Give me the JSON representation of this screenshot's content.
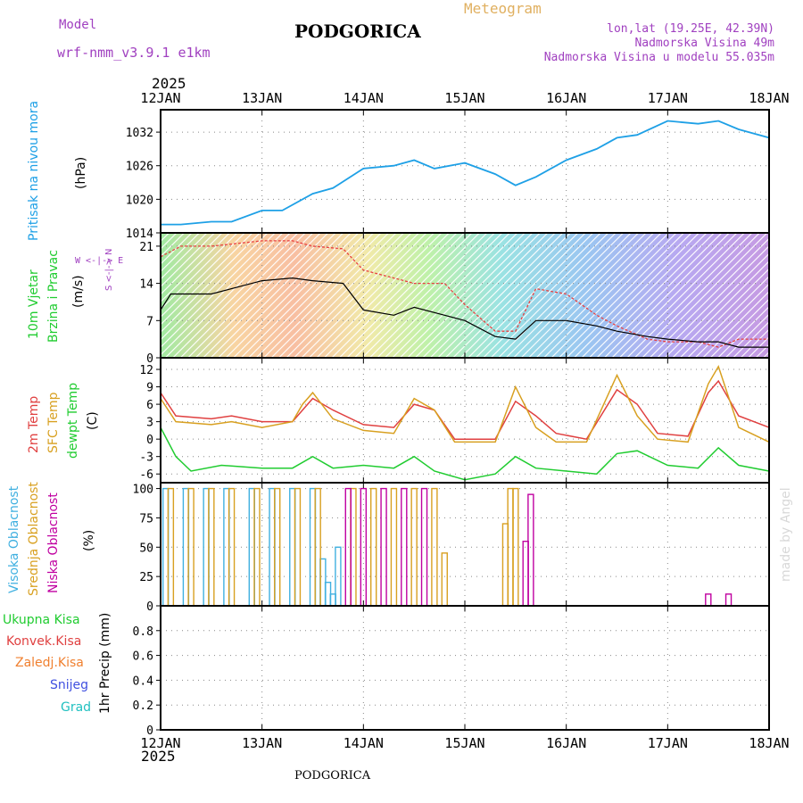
{
  "header": {
    "model_label": "Model",
    "model_name": "wrf-nmm_v3.9.1 e1km",
    "station": "PODGORICA",
    "product": "Meteogram",
    "coords": "lon,lat (19.25E, 42.39N)",
    "elevation": "Nadmorska Visina 49m",
    "model_elevation": "Nadmorska Visina u modelu 55.035m",
    "year_top": "2025",
    "year_bottom": "2025",
    "footer_station": "PODGORICA",
    "credit": "made by Angel"
  },
  "colors": {
    "pressure": "#1ea0e6",
    "wind_speed": "#000000",
    "wind_gust": "#e84040",
    "temp2m": "#e04040",
    "sfc_temp": "#d8a020",
    "dewpoint": "#20cc30",
    "cloud_high": "#40b0e0",
    "cloud_mid": "#d8a020",
    "cloud_low": "#c000a0",
    "grid": "#888888"
  },
  "labels": {
    "pressure": [
      "Pritisak na nivou mora",
      "(hPa)"
    ],
    "wind": [
      "10m Vjetar",
      "Brzina i Pravac",
      "(m/s)"
    ],
    "wind_rose": "W <-|-> E",
    "wind_rose_v": "S <-|-> N",
    "temp": [
      "2m Temp",
      "SFC Temp",
      "dewpt Temp",
      "(C)"
    ],
    "cloud": [
      "Visoka Oblacnost",
      "Srednja Oblacnost",
      "Niska Oblacnost",
      "(%)"
    ],
    "precip_legend": [
      "Ukupna Kisa",
      "Konvek.Kisa",
      "Zaledj.Kisa",
      "Snijeg",
      "Grad"
    ],
    "precip_axis": "1hr Precip (mm)"
  },
  "chart_data": [
    {
      "type": "line",
      "id": "pressure",
      "days": [
        "12JAN",
        "13JAN",
        "14JAN",
        "15JAN",
        "16JAN",
        "17JAN",
        "18JAN"
      ],
      "ylim": [
        1014,
        1036
      ],
      "yticks": [
        "1032",
        "1026",
        "1020",
        "1014"
      ],
      "ytick_values": [
        1032,
        1026,
        1020,
        1014
      ],
      "series": [
        {
          "x": [
            0,
            0.2,
            0.5,
            0.7,
            1.0,
            1.2,
            1.5,
            1.7,
            2.0,
            2.3,
            2.5,
            2.7,
            3.0,
            3.3,
            3.5,
            3.7,
            4.0,
            4.3,
            4.5,
            4.7,
            5.0,
            5.3,
            5.5,
            5.7,
            6.0
          ],
          "y": [
            1015.5,
            1015.5,
            1016,
            1016,
            1018,
            1018,
            1021,
            1022,
            1025.5,
            1026,
            1027,
            1025.5,
            1026.5,
            1024.5,
            1022.5,
            1024,
            1027,
            1029,
            1031,
            1031.5,
            1034,
            1033.5,
            1034,
            1032.5,
            1031
          ]
        }
      ]
    },
    {
      "type": "line",
      "id": "wind",
      "ylim": [
        0,
        23.5
      ],
      "yticks": [
        "21",
        "14",
        "7",
        "0"
      ],
      "ytick_values": [
        21,
        14,
        7,
        0
      ],
      "series": [
        {
          "name": "speed",
          "x": [
            0,
            0.1,
            0.5,
            1.0,
            1.3,
            1.5,
            1.8,
            2.0,
            2.3,
            2.5,
            2.8,
            3.0,
            3.3,
            3.5,
            3.7,
            4.0,
            4.3,
            4.5,
            4.8,
            5.0,
            5.3,
            5.5,
            5.7,
            6.0
          ],
          "y": [
            9,
            12,
            12,
            14.5,
            15,
            14.5,
            14,
            9,
            8,
            9.5,
            8,
            7,
            4,
            3.5,
            7,
            7,
            6,
            5,
            4,
            3.5,
            3,
            3,
            2,
            2
          ]
        },
        {
          "name": "gust",
          "x": [
            0,
            0.2,
            0.5,
            1.0,
            1.3,
            1.5,
            1.8,
            2.0,
            2.3,
            2.5,
            2.8,
            3.0,
            3.3,
            3.5,
            3.7,
            4.0,
            4.3,
            4.5,
            4.8,
            5.0,
            5.3,
            5.5,
            5.7,
            6.0
          ],
          "y": [
            19,
            21,
            21,
            22,
            22,
            21,
            20.5,
            16.5,
            15,
            14,
            14,
            10,
            5,
            5,
            13,
            12,
            8,
            6,
            3.5,
            3,
            3,
            2,
            3.5,
            3.5
          ]
        }
      ]
    },
    {
      "type": "line",
      "id": "temperature",
      "ylim": [
        -7.5,
        14
      ],
      "yticks": [
        "12",
        "9",
        "6",
        "3",
        "0",
        "-3",
        "-6"
      ],
      "ytick_values": [
        12,
        9,
        6,
        3,
        0,
        -3,
        -6
      ],
      "series": [
        {
          "name": "2m Temp",
          "x": [
            0,
            0.15,
            0.5,
            0.7,
            1.0,
            1.3,
            1.4,
            1.5,
            1.7,
            2.0,
            2.3,
            2.5,
            2.7,
            2.9,
            3.3,
            3.5,
            3.7,
            3.9,
            4.2,
            4.5,
            4.7,
            4.9,
            5.2,
            5.4,
            5.5,
            5.7,
            6.0
          ],
          "y": [
            8,
            4,
            3.5,
            4,
            3,
            3,
            5,
            7,
            5,
            2.5,
            2,
            6,
            5,
            0,
            0,
            6.5,
            4,
            1,
            0,
            8.5,
            6,
            1,
            0.5,
            8,
            10,
            4,
            2
          ]
        },
        {
          "name": "SFC Temp",
          "x": [
            0,
            0.15,
            0.5,
            0.7,
            1.0,
            1.3,
            1.4,
            1.5,
            1.7,
            2.0,
            2.3,
            2.5,
            2.7,
            2.9,
            3.3,
            3.5,
            3.7,
            3.9,
            4.2,
            4.5,
            4.7,
            4.9,
            5.2,
            5.4,
            5.5,
            5.7,
            6.0
          ],
          "y": [
            7,
            3,
            2.5,
            3,
            2,
            3,
            6,
            8,
            3.5,
            1.5,
            1,
            7,
            5,
            -0.5,
            -0.5,
            9,
            2,
            -0.5,
            -0.5,
            11,
            4,
            0,
            -0.5,
            9.5,
            12.5,
            2,
            -0.5
          ]
        },
        {
          "name": "dewpt Temp",
          "x": [
            0,
            0.15,
            0.3,
            0.6,
            1.0,
            1.3,
            1.5,
            1.7,
            2.0,
            2.3,
            2.5,
            2.7,
            3.0,
            3.3,
            3.5,
            3.7,
            4.0,
            4.3,
            4.5,
            4.7,
            5.0,
            5.3,
            5.5,
            5.7,
            6.0
          ],
          "y": [
            2,
            -3,
            -5.5,
            -4.5,
            -5,
            -5,
            -3,
            -5,
            -4.5,
            -5,
            -3,
            -5.5,
            -7,
            -6,
            -3,
            -5,
            -5.5,
            -6,
            -2.5,
            -2,
            -4.5,
            -5,
            -1.5,
            -4.5,
            -5.5
          ]
        }
      ]
    },
    {
      "type": "bar",
      "id": "cloud",
      "ylim": [
        0,
        105
      ],
      "yticks": [
        "100",
        "75",
        "50",
        "25",
        "0"
      ],
      "ytick_values": [
        100,
        75,
        50,
        25,
        0
      ],
      "series": [
        {
          "name": "Visoka Oblacnost",
          "x": [
            0.05,
            0.25,
            0.45,
            0.65,
            0.9,
            1.1,
            1.3,
            1.5,
            1.6,
            1.65,
            1.7,
            1.75
          ],
          "y": [
            100,
            100,
            100,
            100,
            100,
            100,
            100,
            100,
            40,
            20,
            10,
            50
          ]
        },
        {
          "name": "Srednja Oblacnost",
          "x": [
            0.1,
            0.3,
            0.5,
            0.7,
            0.95,
            1.15,
            1.35,
            1.55,
            1.9,
            2.1,
            2.3,
            2.5,
            2.7,
            2.8,
            3.4,
            3.45,
            3.5
          ],
          "y": [
            100,
            100,
            100,
            100,
            100,
            100,
            100,
            100,
            100,
            100,
            100,
            100,
            100,
            45,
            70,
            100,
            100
          ]
        },
        {
          "name": "Niska Oblacnost",
          "x": [
            1.85,
            2.0,
            2.2,
            2.4,
            2.6,
            3.6,
            3.65,
            5.4,
            5.6
          ],
          "y": [
            100,
            100,
            100,
            100,
            100,
            55,
            95,
            10,
            10
          ]
        }
      ]
    },
    {
      "type": "bar",
      "id": "precip",
      "ylim": [
        0,
        1.0
      ],
      "yticks": [
        "0.8",
        "0.6",
        "0.4",
        "0.2",
        "0"
      ],
      "ytick_values": [
        0.8,
        0.6,
        0.4,
        0.2,
        0
      ],
      "series": []
    }
  ]
}
